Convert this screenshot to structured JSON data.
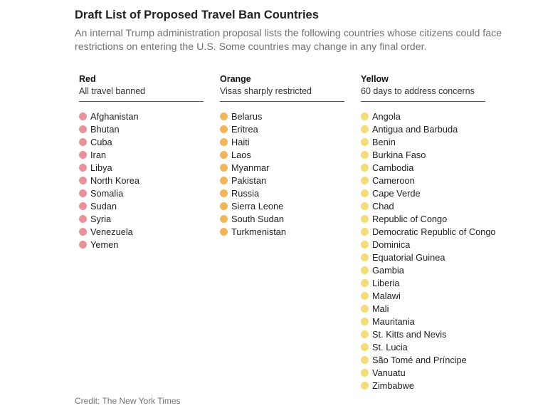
{
  "header": {
    "title": "Draft List of Proposed Travel Ban Countries",
    "subtitle": "An internal Trump administration proposal lists the following countries whose citizens could face restrictions on entering the U.S. Some countries may change in any final order."
  },
  "columns": {
    "red": {
      "label": "Red",
      "description": "All travel banned",
      "dot_color": "#e8929a",
      "countries": [
        "Afghanistan",
        "Bhutan",
        "Cuba",
        "Iran",
        "Libya",
        "North Korea",
        "Somalia",
        "Sudan",
        "Syria",
        "Venezuela",
        "Yemen"
      ]
    },
    "orange": {
      "label": "Orange",
      "description": "Visas sharply restricted",
      "dot_color": "#f2b65a",
      "countries": [
        "Belarus",
        "Eritrea",
        "Haiti",
        "Laos",
        "Myanmar",
        "Pakistan",
        "Russia",
        "Sierra Leone",
        "South Sudan",
        "Turkmenistan"
      ]
    },
    "yellow": {
      "label": "Yellow",
      "description": "60 days to address concerns",
      "dot_color": "#f4dc7a",
      "countries": [
        "Angola",
        "Antigua and Barbuda",
        "Benin",
        "Burkina Faso",
        "Cambodia",
        "Cameroon",
        "Cape Verde",
        "Chad",
        "Republic of Congo",
        "Democratic Republic of Congo",
        "Dominica",
        "Equatorial Guinea",
        "Gambia",
        "Liberia",
        "Malawi",
        "Mali",
        "Mauritania",
        "St. Kitts and Nevis",
        "St. Lucia",
        "São Tomé and Príncipe",
        "Vanuatu",
        "Zimbabwe"
      ]
    }
  },
  "footer": {
    "credit": "Credit: The New York Times"
  }
}
